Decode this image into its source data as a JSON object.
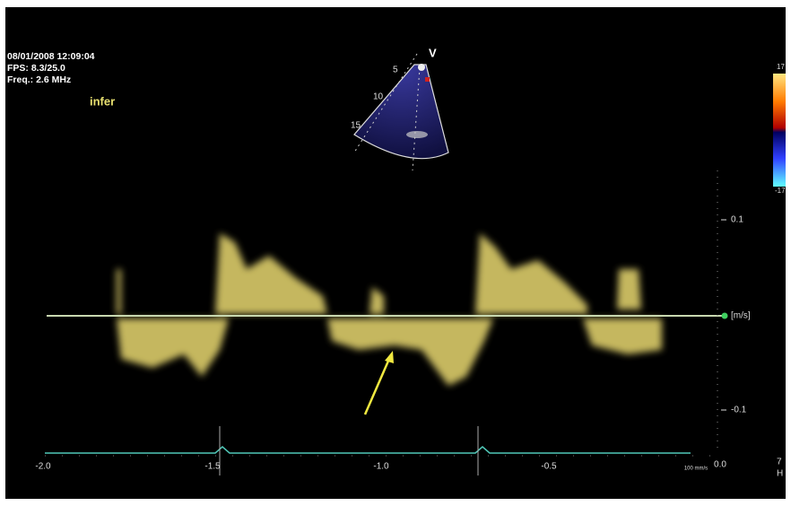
{
  "overlay": {
    "timestamp": "08/01/2008 12:09:04",
    "fps": "FPS: 8.3/25.0",
    "freq": "Freq.: 2.6 MHz",
    "view": "infer"
  },
  "probe": {
    "label": "V",
    "depths": [
      "5",
      "10",
      "15"
    ]
  },
  "color_bar": {
    "max": "17",
    "min": "-17"
  },
  "velocity_scale": {
    "top": "0.1",
    "unit": "[m/s]",
    "bottom": "-0.1"
  },
  "time_axis": {
    "ticks": [
      "-2.0",
      "-1.5",
      "-1.0",
      "-0.5",
      "0.0"
    ],
    "sweep": "100 mm/s"
  },
  "edge": [
    "7",
    "H"
  ]
}
